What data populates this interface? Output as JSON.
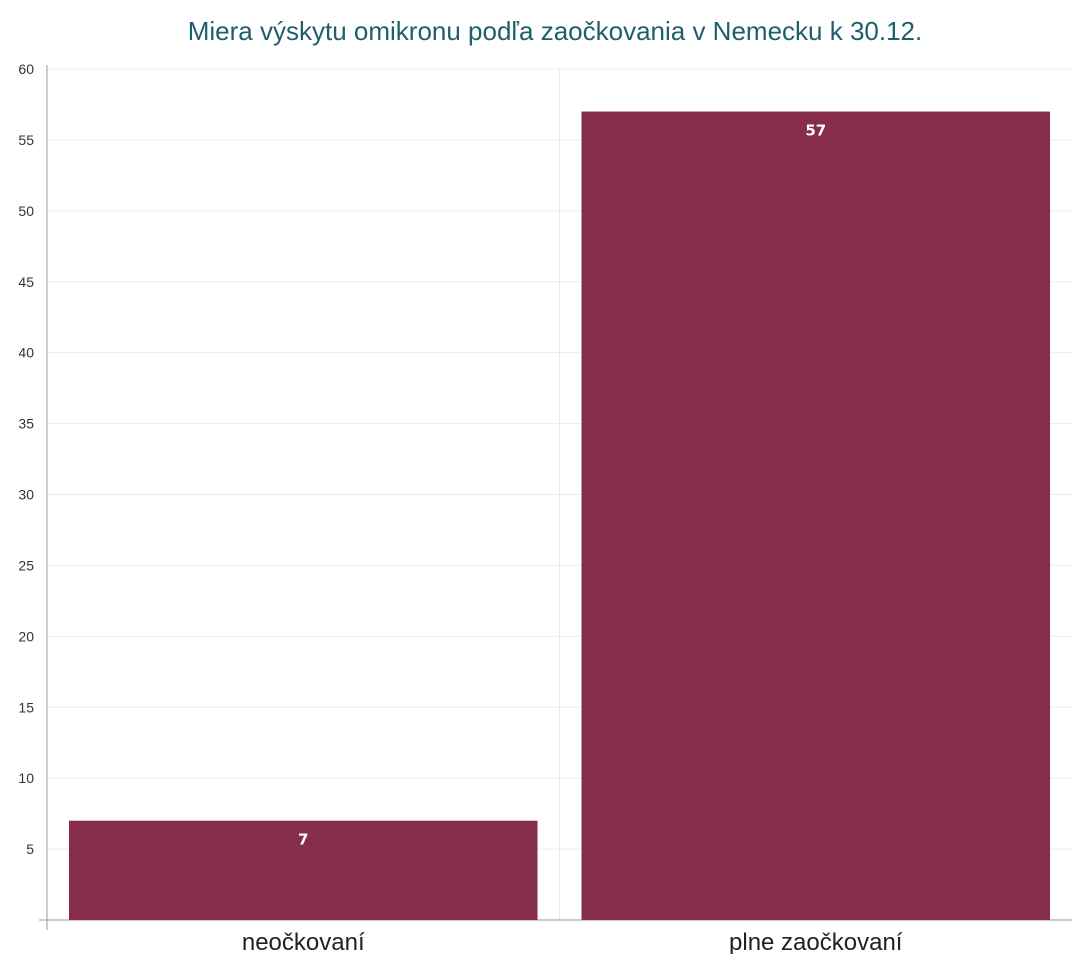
{
  "colors": {
    "bar": "#862d4a",
    "title": "#1f5f6b",
    "grid": "#ebebeb",
    "axis": "#9a9a9a"
  },
  "chart_data": {
    "type": "bar",
    "title": "Miera výskytu omikronu podľa zaočkovania v Nemecku k 30.12.",
    "xlabel": "",
    "ylabel": "",
    "categories": [
      "neočkovaní",
      "plne zaočkovaní"
    ],
    "values": [
      7,
      57
    ],
    "data_labels": [
      "7",
      "57"
    ],
    "ylim": [
      0,
      60
    ],
    "yticks": [
      5,
      10,
      15,
      20,
      25,
      30,
      35,
      40,
      45,
      50,
      55,
      60
    ],
    "grid": true,
    "legend": "none"
  }
}
